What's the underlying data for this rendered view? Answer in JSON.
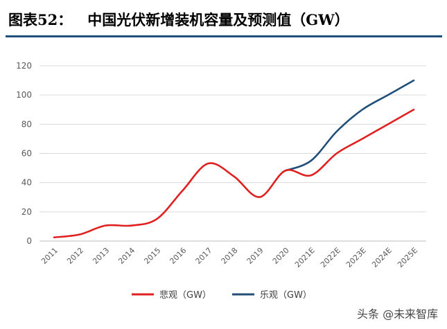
{
  "header": {
    "figure_label": "图表52：",
    "title": "中国光伏新增装机容量及预测值（GW）"
  },
  "watermark": "头条 @未来智库",
  "chart_data": {
    "type": "line",
    "categories": [
      "2011",
      "2012",
      "2013",
      "2014",
      "2015",
      "2016",
      "2017",
      "2018",
      "2019",
      "2020",
      "2021E",
      "2022E",
      "2023E",
      "2024E",
      "2025E"
    ],
    "ylim": [
      0,
      120
    ],
    "yticks": [
      0,
      20,
      40,
      60,
      80,
      100,
      120
    ],
    "grid": true,
    "legend_position": "bottom",
    "series": [
      {
        "name": "悲观（GW）",
        "color": "#e01f1f",
        "values": [
          2.5,
          4.5,
          10.6,
          10.6,
          15.1,
          34.5,
          53.1,
          44.3,
          30.1,
          48.2,
          45,
          60,
          70,
          80,
          90
        ]
      },
      {
        "name": "乐观（GW）",
        "color": "#1f4e79",
        "values": [
          null,
          null,
          null,
          null,
          null,
          null,
          null,
          null,
          null,
          48.2,
          55,
          75,
          90,
          100,
          110
        ]
      }
    ]
  }
}
